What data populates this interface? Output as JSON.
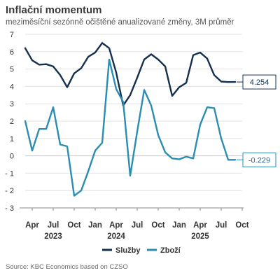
{
  "title": "Inflační momentum",
  "subtitle": "meziměsíční sezónně očištěné anualizované změny, 3M průměr",
  "source": "Source: KBC Economics based on CZSO",
  "colors": {
    "sluzby": "#14304f",
    "zbozi": "#2a8db1",
    "grid": "#e2e2e2",
    "axis": "#8a8a8a",
    "text": "#333333"
  },
  "chart_data": {
    "type": "line",
    "title": "Inflační momentum",
    "subtitle": "meziměsíční sezónně očištěné anualizované změny, 3M průměr",
    "ylim": [
      -3,
      7
    ],
    "yticks": [
      -3,
      -2,
      -1,
      0,
      1,
      2,
      3,
      4,
      5,
      6,
      7
    ],
    "grid": true,
    "legend": "bottom-center",
    "x_start": "2023-03",
    "x_end": "2025-10",
    "xticks": [
      {
        "month": "2023-04",
        "label": "Apr"
      },
      {
        "month": "2023-07",
        "label": "Jul"
      },
      {
        "month": "2023-10",
        "label": "Oct"
      },
      {
        "month": "2024-01",
        "label": "Jan"
      },
      {
        "month": "2024-04",
        "label": "Apr"
      },
      {
        "month": "2024-07",
        "label": "Jul"
      },
      {
        "month": "2024-10",
        "label": "Oct"
      },
      {
        "month": "2025-01",
        "label": "Jan"
      },
      {
        "month": "2025-04",
        "label": "Apr"
      },
      {
        "month": "2025-07",
        "label": "Jul"
      },
      {
        "month": "2025-10",
        "label": "Oct"
      }
    ],
    "years": [
      {
        "month": "2023-07",
        "label": "2023"
      },
      {
        "month": "2024-04",
        "label": "2024"
      },
      {
        "month": "2025-04",
        "label": "2025"
      }
    ],
    "x": [
      "2023-03",
      "2023-04",
      "2023-05",
      "2023-06",
      "2023-07",
      "2023-08",
      "2023-09",
      "2023-10",
      "2023-11",
      "2023-12",
      "2024-01",
      "2024-02",
      "2024-03",
      "2024-04",
      "2024-05",
      "2024-06",
      "2024-07",
      "2024-08",
      "2024-09",
      "2024-10",
      "2024-11",
      "2024-12",
      "2025-01",
      "2025-02",
      "2025-03",
      "2025-04",
      "2025-05",
      "2025-06",
      "2025-07",
      "2025-08",
      "2025-09"
    ],
    "series": [
      {
        "name": "Služby",
        "color": "#14304f",
        "values": [
          6.2,
          5.5,
          5.25,
          5.28,
          5.15,
          4.65,
          3.95,
          4.75,
          5.05,
          5.7,
          5.95,
          6.5,
          6.2,
          4.8,
          2.9,
          3.5,
          4.5,
          5.55,
          5.85,
          5.55,
          5.15,
          3.45,
          3.95,
          4.2,
          5.8,
          5.95,
          5.6,
          4.65,
          4.28,
          4.25,
          4.254
        ],
        "end_label": "4.254"
      },
      {
        "name": "Zboží",
        "color": "#2a8db1",
        "values": [
          2.0,
          0.3,
          1.55,
          1.55,
          2.8,
          0.65,
          0.55,
          -2.3,
          -2.0,
          -0.9,
          0.3,
          0.75,
          5.55,
          3.85,
          3.1,
          -1.15,
          1.4,
          3.8,
          2.9,
          1.2,
          0.2,
          -0.15,
          -0.2,
          -0.05,
          -0.15,
          1.8,
          2.8,
          2.75,
          1.0,
          -0.229,
          -0.229
        ],
        "end_label": "-0.229"
      }
    ]
  }
}
